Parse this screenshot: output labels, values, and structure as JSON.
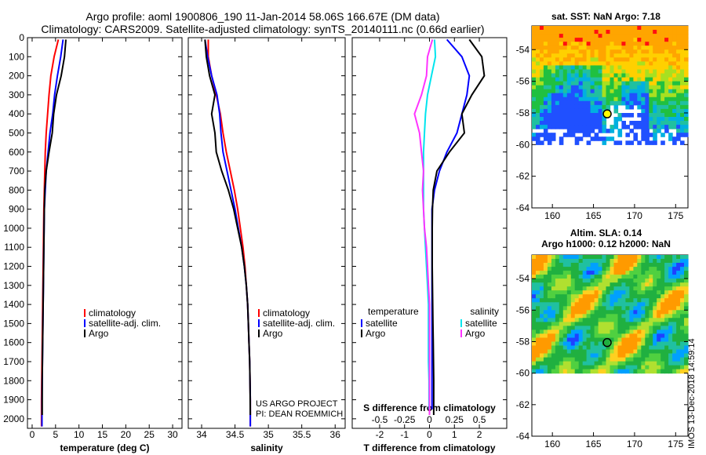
{
  "figure": {
    "title": "Argo profile: aoml 1900806_190 11-Jan-2014 58.06S 166.67E (DM data)",
    "subtitle": "Climatology: CARS2009. Satellite-adjusted climatology: synTS_20140111.nc (0.66d earlier)",
    "sst_map_title": "sat. SST: NaN Argo: 7.18",
    "sla_map_title_1": "Altim. SLA: 0.14",
    "sla_map_title_2": "Argo h1000: 0.12 h2000: NaN",
    "credit": "IMOS 13-Dec-2018 14:59:14",
    "project_line_1": "US ARGO PROJECT",
    "project_line_2": "PI: DEAN ROEMMICH"
  },
  "colors": {
    "argo": "#000000",
    "climatology": "#ff0000",
    "satellite": "#0000ff",
    "sat_salinity": "#00e5ee",
    "clim_salinity": "#ff33ff"
  },
  "chart_data": [
    {
      "type": "line",
      "name": "temperature",
      "xlabel": "temperature (deg C)",
      "ylabel": "",
      "xlim": [
        -1,
        32
      ],
      "ylim": [
        2050,
        0
      ],
      "xticks": [
        0,
        5,
        10,
        15,
        20,
        25,
        30
      ],
      "yticks": [
        0,
        100,
        200,
        300,
        400,
        500,
        600,
        700,
        800,
        900,
        1000,
        1100,
        1200,
        1300,
        1400,
        1500,
        1600,
        1700,
        1800,
        1900,
        2000
      ],
      "ytick_labels": [
        "0",
        "100",
        "200",
        "300",
        "400",
        "500",
        "600",
        "700",
        "800",
        "900",
        "1000",
        "1100",
        "1200",
        "1300",
        "1400",
        "1500",
        "1600",
        "1700",
        "1800",
        "1900",
        "2000"
      ],
      "legend": [
        "climatology",
        "satellite-adj. clim.",
        "Argo"
      ],
      "legend_position": "lower-right",
      "series": [
        {
          "name": "climatology",
          "color": "#ff0000",
          "x": [
            5.6,
            4.7,
            4.0,
            3.6,
            3.3,
            3.0,
            2.8,
            2.7,
            2.6,
            2.5,
            2.45,
            2.4,
            2.35,
            2.3,
            2.25,
            2.2,
            2.15,
            2.1,
            2.05,
            2.0,
            2.0
          ],
          "y": [
            10,
            100,
            200,
            300,
            400,
            500,
            600,
            700,
            800,
            900,
            1000,
            1100,
            1200,
            1300,
            1400,
            1500,
            1600,
            1700,
            1800,
            1900,
            2040
          ]
        },
        {
          "name": "satellite-adj. clim.",
          "color": "#0000ff",
          "x": [
            6.6,
            6.1,
            5.4,
            4.8,
            4.4,
            3.8,
            3.4,
            3.0,
            2.8,
            2.6,
            2.55,
            2.5,
            2.45,
            2.4,
            2.35,
            2.3,
            2.25,
            2.2,
            2.15,
            2.1,
            2.1
          ],
          "y": [
            10,
            100,
            200,
            300,
            400,
            500,
            600,
            700,
            800,
            900,
            1000,
            1100,
            1200,
            1300,
            1400,
            1500,
            1600,
            1700,
            1800,
            1900,
            2040
          ]
        },
        {
          "name": "Argo",
          "color": "#000000",
          "x": [
            7.2,
            6.9,
            6.2,
            5.2,
            4.6,
            4.3,
            3.6,
            3.0,
            2.7,
            2.6,
            2.55,
            2.5,
            2.45,
            2.4,
            2.35,
            2.3,
            2.25,
            2.2,
            2.15,
            2.15
          ],
          "y": [
            10,
            100,
            200,
            300,
            400,
            500,
            600,
            700,
            800,
            900,
            1000,
            1100,
            1200,
            1300,
            1400,
            1500,
            1600,
            1700,
            1800,
            1980
          ]
        }
      ]
    },
    {
      "type": "line",
      "name": "salinity",
      "xlabel": "salinity",
      "ylabel": "",
      "xlim": [
        33.8,
        36.15
      ],
      "ylim": [
        2050,
        0
      ],
      "xticks": [
        34,
        34.5,
        35,
        35.5,
        36
      ],
      "legend": [
        "climatology",
        "satellite-adj. clim.",
        "Argo"
      ],
      "legend_position": "lower-right",
      "series": [
        {
          "name": "climatology",
          "color": "#ff0000",
          "x": [
            34.1,
            34.1,
            34.15,
            34.22,
            34.28,
            34.32,
            34.37,
            34.43,
            34.49,
            34.54,
            34.58,
            34.62,
            34.65,
            34.67,
            34.69,
            34.7,
            34.71,
            34.72,
            34.725,
            34.73,
            34.73
          ],
          "y": [
            10,
            100,
            200,
            300,
            400,
            500,
            600,
            700,
            800,
            900,
            1000,
            1100,
            1200,
            1300,
            1400,
            1500,
            1600,
            1700,
            1800,
            1900,
            2040
          ]
        },
        {
          "name": "satellite-adj. clim.",
          "color": "#0000ff",
          "x": [
            34.05,
            34.09,
            34.15,
            34.23,
            34.27,
            34.29,
            34.32,
            34.38,
            34.44,
            34.5,
            34.55,
            34.6,
            34.64,
            34.67,
            34.69,
            34.7,
            34.71,
            34.72,
            34.725,
            34.73,
            34.73
          ],
          "y": [
            10,
            100,
            200,
            300,
            400,
            500,
            600,
            700,
            800,
            900,
            1000,
            1100,
            1200,
            1300,
            1400,
            1500,
            1600,
            1700,
            1800,
            1900,
            2040
          ]
        },
        {
          "name": "Argo",
          "color": "#000000",
          "x": [
            34.05,
            34.07,
            34.12,
            34.2,
            34.15,
            34.2,
            34.22,
            34.3,
            34.4,
            34.48,
            34.54,
            34.6,
            34.64,
            34.67,
            34.69,
            34.7,
            34.71,
            34.72,
            34.725,
            34.73
          ],
          "y": [
            10,
            100,
            200,
            300,
            400,
            500,
            600,
            700,
            800,
            900,
            1000,
            1100,
            1200,
            1300,
            1400,
            1500,
            1600,
            1700,
            1800,
            1980
          ]
        }
      ]
    },
    {
      "type": "line",
      "name": "difference",
      "xlabel": "T difference from climatology",
      "x2label": "S difference from climatology",
      "ylabel": "",
      "xlim": [
        -3.1,
        3.1
      ],
      "ylim": [
        2050,
        0
      ],
      "xticks": [
        -2,
        -1,
        0,
        1,
        2
      ],
      "x2ticks": [
        -0.5,
        -0.25,
        0,
        0.25,
        0.5
      ],
      "x2tick_labels": [
        "-0.5",
        "-0.25",
        "0",
        "0.25",
        "0.5"
      ],
      "x2lim": [
        -0.775,
        0.775
      ],
      "legend": [
        "temperature",
        "satellite",
        "Argo",
        "salinity",
        "satellite",
        "Argo"
      ],
      "legend_position": "lower-center",
      "series": [
        {
          "name": "T satellite",
          "axis": "T",
          "color": "#0000ff",
          "x": [
            0.7,
            1.3,
            1.6,
            1.5,
            1.3,
            1.1,
            0.7,
            0.4,
            0.2,
            0.1,
            0.1,
            0.1,
            0.1,
            0.1,
            0.1,
            0.1,
            0.1,
            0.1,
            0.1,
            0.1
          ],
          "y": [
            10,
            100,
            200,
            300,
            400,
            500,
            600,
            700,
            800,
            900,
            1000,
            1100,
            1200,
            1300,
            1400,
            1500,
            1600,
            1700,
            1800,
            1950
          ]
        },
        {
          "name": "T Argo",
          "axis": "T",
          "color": "#000000",
          "x": [
            1.6,
            2.1,
            2.2,
            1.7,
            1.3,
            1.4,
            0.8,
            0.3,
            0.15,
            0.12,
            0.11,
            0.11,
            0.11,
            0.12,
            0.13,
            0.14,
            0.15,
            0.16,
            0.17,
            0.17
          ],
          "y": [
            10,
            100,
            200,
            300,
            400,
            500,
            600,
            700,
            800,
            900,
            1000,
            1100,
            1200,
            1300,
            1400,
            1500,
            1600,
            1700,
            1800,
            1980
          ]
        },
        {
          "name": "S satellite",
          "axis": "S",
          "color": "#00e5ee",
          "x": [
            0.05,
            0.06,
            0.02,
            -0.02,
            -0.04,
            -0.05,
            -0.06,
            -0.06,
            -0.06,
            -0.06,
            -0.05,
            -0.04,
            -0.03,
            -0.02,
            -0.01,
            -0.01,
            -0.01,
            -0.01,
            -0.005,
            -0.005
          ],
          "y": [
            10,
            100,
            200,
            300,
            400,
            500,
            600,
            700,
            800,
            900,
            1000,
            1100,
            1200,
            1300,
            1400,
            1500,
            1600,
            1700,
            1800,
            1950
          ]
        },
        {
          "name": "S Argo",
          "axis": "S",
          "color": "#ff33ff",
          "x": [
            0.03,
            -0.02,
            -0.03,
            -0.08,
            -0.15,
            -0.1,
            -0.08,
            -0.06,
            -0.07,
            -0.06,
            -0.05,
            -0.03,
            -0.02,
            -0.01,
            0.0,
            0.0,
            0.0,
            0.0,
            0.0,
            0.0
          ],
          "y": [
            10,
            100,
            200,
            300,
            400,
            500,
            600,
            700,
            800,
            900,
            1000,
            1100,
            1200,
            1300,
            1400,
            1500,
            1600,
            1700,
            1800,
            1980
          ]
        }
      ]
    },
    {
      "type": "heatmap",
      "name": "sat-sst-map",
      "xlim": [
        157.5,
        176.5
      ],
      "ylim": [
        -64,
        -52.5
      ],
      "xticks": [
        160,
        165,
        170,
        175
      ],
      "yticks": [
        -54,
        -56,
        -58,
        -60,
        -62,
        -64
      ],
      "data_extent": [
        157.5,
        176.5,
        -60,
        -52.5
      ],
      "argo_position": [
        166.67,
        -58.06
      ]
    },
    {
      "type": "heatmap",
      "name": "altimetry-sla-map",
      "xlim": [
        157.5,
        176.5
      ],
      "ylim": [
        -64,
        -52.5
      ],
      "xticks": [
        160,
        165,
        170,
        175
      ],
      "yticks": [
        -54,
        -56,
        -58,
        -60,
        -62,
        -64
      ],
      "data_extent": [
        157.5,
        176.5,
        -60,
        -52.5
      ],
      "argo_position": [
        166.67,
        -58.06
      ]
    }
  ]
}
